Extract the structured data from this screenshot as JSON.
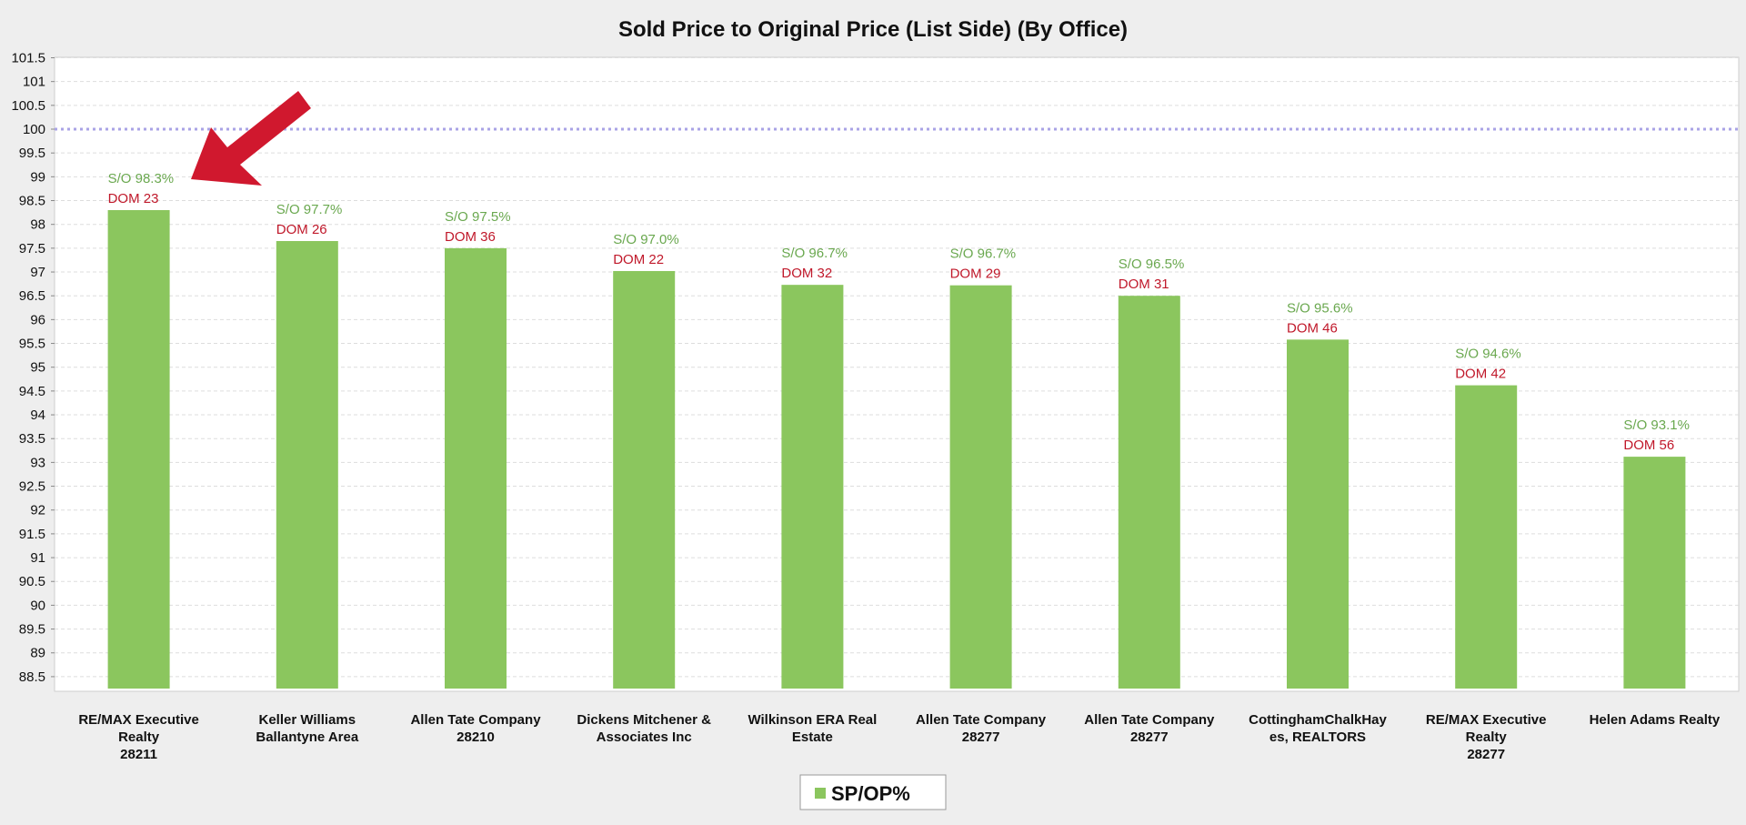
{
  "chart_data": {
    "type": "bar",
    "title": "Sold Price to Original Price (List Side) (By Office)",
    "ylim": [
      88.25,
      101.5
    ],
    "yticks": [
      "101.5",
      "101",
      "100.5",
      "100",
      "99.5",
      "99",
      "98.5",
      "98",
      "97.5",
      "97",
      "96.5",
      "96",
      "95.5",
      "95",
      "94.5",
      "94",
      "93.5",
      "93",
      "92.5",
      "92",
      "91.5",
      "91",
      "90.5",
      "90",
      "89.5",
      "89",
      "88.5"
    ],
    "reference_line": 100,
    "grid": true,
    "categories": [
      [
        "RE/MAX Executive",
        "Realty",
        "28211"
      ],
      [
        "Keller Williams",
        "Ballantyne Area"
      ],
      [
        "Allen Tate Company",
        "28210"
      ],
      [
        "Dickens Mitchener &",
        "Associates Inc"
      ],
      [
        "Wilkinson ERA Real",
        "Estate"
      ],
      [
        "Allen Tate Company",
        "28277"
      ],
      [
        "Allen Tate Company",
        "28277"
      ],
      [
        "CottinghamChalkHay",
        "es, REALTORS"
      ],
      [
        "RE/MAX Executive",
        "Realty",
        "28277"
      ],
      [
        "Helen Adams Realty"
      ]
    ],
    "series": [
      {
        "name": "SP/OP%",
        "color": "#8bc65e",
        "values": [
          98.3,
          97.65,
          97.5,
          97.02,
          96.73,
          96.72,
          96.5,
          95.58,
          94.62,
          93.12
        ]
      }
    ],
    "so_labels": [
      "S/O 98.3%",
      "S/O 97.7%",
      "S/O 97.5%",
      "S/O 97.0%",
      "S/O 96.7%",
      "S/O 96.7%",
      "S/O 96.5%",
      "S/O 95.6%",
      "S/O 94.6%",
      "S/O 93.1%"
    ],
    "dom_labels": [
      "DOM 23",
      "DOM 26",
      "DOM 36",
      "DOM 22",
      "DOM 32",
      "DOM 29",
      "DOM 31",
      "DOM 46",
      "DOM 42",
      "DOM 56"
    ],
    "legend": {
      "label": "SP/OP%",
      "position": "bottom-center"
    },
    "annotation": {
      "type": "arrow",
      "color": "#d0182e",
      "points_to": "RE/MAX Executive Realty 28211"
    }
  }
}
